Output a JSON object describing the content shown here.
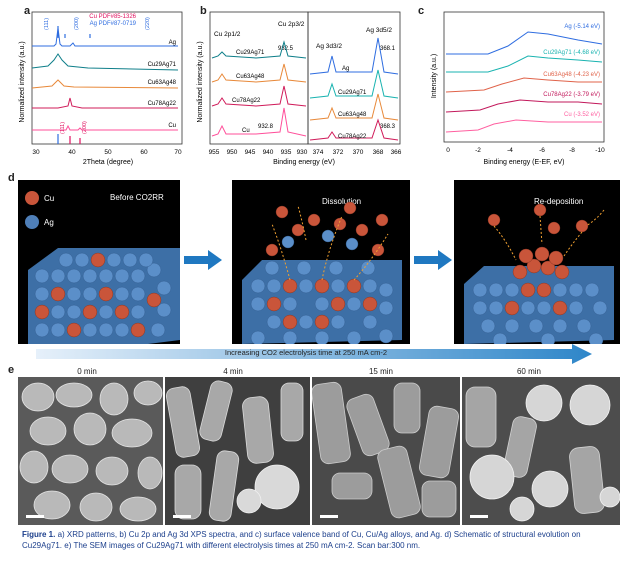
{
  "panels": {
    "a": {
      "label": "a",
      "ylabel": "Normalized intensity (a.u.)",
      "xlabel": "2Theta (degree)",
      "xticks": [
        "30",
        "40",
        "50",
        "60",
        "70"
      ],
      "legend": [
        {
          "text": "Cu PDF#85-1326",
          "color": "#e0115f"
        },
        {
          "text": "Ag PDF#87-0719",
          "color": "#2f6de0"
        }
      ],
      "peak_labels_top": [
        "(111)",
        "(200)",
        "(220)"
      ],
      "peak_labels_bottom": [
        "(111)",
        "(200)"
      ],
      "series": [
        "Ag",
        "Cu29Ag71",
        "Cu63Ag48",
        "Cu78Ag22",
        "Cu"
      ]
    },
    "b": {
      "label": "b",
      "ylabel": "Normalized intensity (a.u.)",
      "xlabel": "Binding energy (eV)",
      "xticks_left": [
        "955",
        "950",
        "945",
        "940",
        "935",
        "930"
      ],
      "xticks_right": [
        "374",
        "372",
        "370",
        "368",
        "366"
      ],
      "annotations": {
        "cu2p12": "Cu 2p1/2",
        "cu2p32": "Cu 2p3/2",
        "v9325": "932.5",
        "v9328": "932.8",
        "ag3d52": "Ag 3d5/2",
        "ag3d32": "Ag 3d3/2",
        "v3681": "368.1",
        "v3683": "368.3"
      },
      "series_left": [
        "Cu29Ag71",
        "Cu63Ag48",
        "Cu78Ag22",
        "Cu"
      ],
      "series_right": [
        "Ag",
        "Cu29Ag71",
        "Cu63Ag48",
        "Cu78Ag22"
      ]
    },
    "c": {
      "label": "c",
      "ylabel": "Intensity (a.u.)",
      "xlabel": "Binding energy (E-EF, eV)",
      "xticks": [
        "0",
        "-2",
        "-4",
        "-6",
        "-8",
        "-10"
      ],
      "series": [
        {
          "name": "Ag (-5.14 eV)",
          "color": "#2f6de0"
        },
        {
          "name": "Cu29Ag71 (-4.68 eV)",
          "color": "#19b3b0"
        },
        {
          "name": "Cu63Ag48 (-4.23 eV)",
          "color": "#e0634a"
        },
        {
          "name": "Cu78Ag22 (-3.79 eV)",
          "color": "#c2185b"
        },
        {
          "name": "Cu (-3.52 eV)",
          "color": "#ff5fa0"
        }
      ]
    },
    "d": {
      "label": "d",
      "legend_cu": "Cu",
      "legend_ag": "Ag",
      "stage1": "Before CO2RR",
      "stage2": "Dissolution",
      "stage3": "Re-deposition",
      "timeline": "Increasing CO2 electrolysis time at 250 mA cm-2"
    },
    "e": {
      "label": "e",
      "times": [
        "0 min",
        "4 min",
        "15 min",
        "60 min"
      ]
    }
  },
  "caption": {
    "bold": "Figure 1.",
    "text": " a) XRD patterns, b) Cu 2p and Ag 3d XPS spectra, and c) surface valence band of Cu, Cu/Ag alloys, and Ag. d) Schematic of structural evolution on Cu29Ag71. e) The SEM images of Cu29Ag71 with different electrolysis times at 250 mA cm-2. Scan bar:300 nm."
  }
}
